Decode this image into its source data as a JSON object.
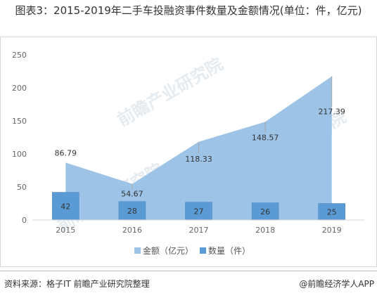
{
  "header": {
    "title": "图表3：2015-2019年二手车投融资事件数量及金额情况(单位：件，亿元)"
  },
  "footer": {
    "source": "资料来源：格子IT 前瞻产业研究院整理",
    "brand": "@前瞻经济学人APP"
  },
  "watermark": {
    "text": "前瞻产业研究院"
  },
  "colors": {
    "amount_area": "#9dc3e6",
    "count_bar": "#5b9bd5",
    "axis": "#d9d9d9",
    "label_line": "#a6a6a6"
  },
  "chart_data": {
    "type": "bar",
    "categories": [
      "2015",
      "2016",
      "2017",
      "2018",
      "2019"
    ],
    "series": [
      {
        "name": "金额（亿元）",
        "type": "area",
        "values": [
          86.79,
          54.67,
          118.33,
          148.57,
          217.39
        ]
      },
      {
        "name": "数量（件）",
        "type": "bar",
        "values": [
          42,
          28,
          27,
          26,
          25
        ]
      }
    ],
    "ylim": [
      0,
      250
    ],
    "yticks": [
      "0",
      "50",
      "100",
      "150",
      "200",
      "250"
    ],
    "grid": false,
    "legend_position": "bottom"
  }
}
